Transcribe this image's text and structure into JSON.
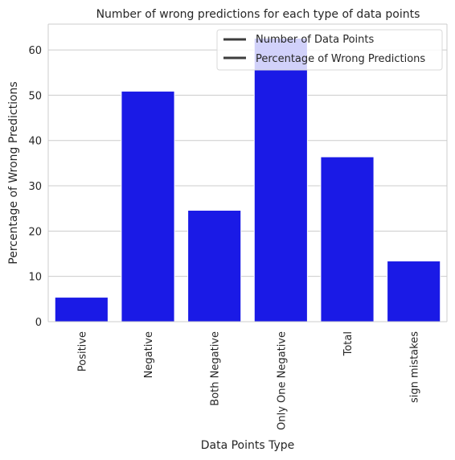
{
  "chart_data": {
    "type": "bar",
    "title": "Number of wrong predictions for each type of data points",
    "xlabel": "Data Points Type",
    "ylabel": "Percentage of Wrong Predictions",
    "categories": [
      "Positive",
      "Negative",
      "Both Negative",
      "Only One Negative",
      "Total",
      "sign mistakes"
    ],
    "values": [
      5.4,
      50.9,
      24.6,
      62.6,
      36.4,
      13.4
    ],
    "ylim": [
      0,
      65.7
    ],
    "yticks": [
      0,
      10,
      20,
      30,
      40,
      50,
      60
    ],
    "bar_color": "#1a1ae6",
    "grid": true,
    "legend": {
      "placement": "top-right",
      "entries": [
        {
          "label": "Number of Data Points",
          "color": "#3d3d3d"
        },
        {
          "label": "Percentage of Wrong Predictions",
          "color": "#3d3d3d"
        }
      ]
    }
  }
}
